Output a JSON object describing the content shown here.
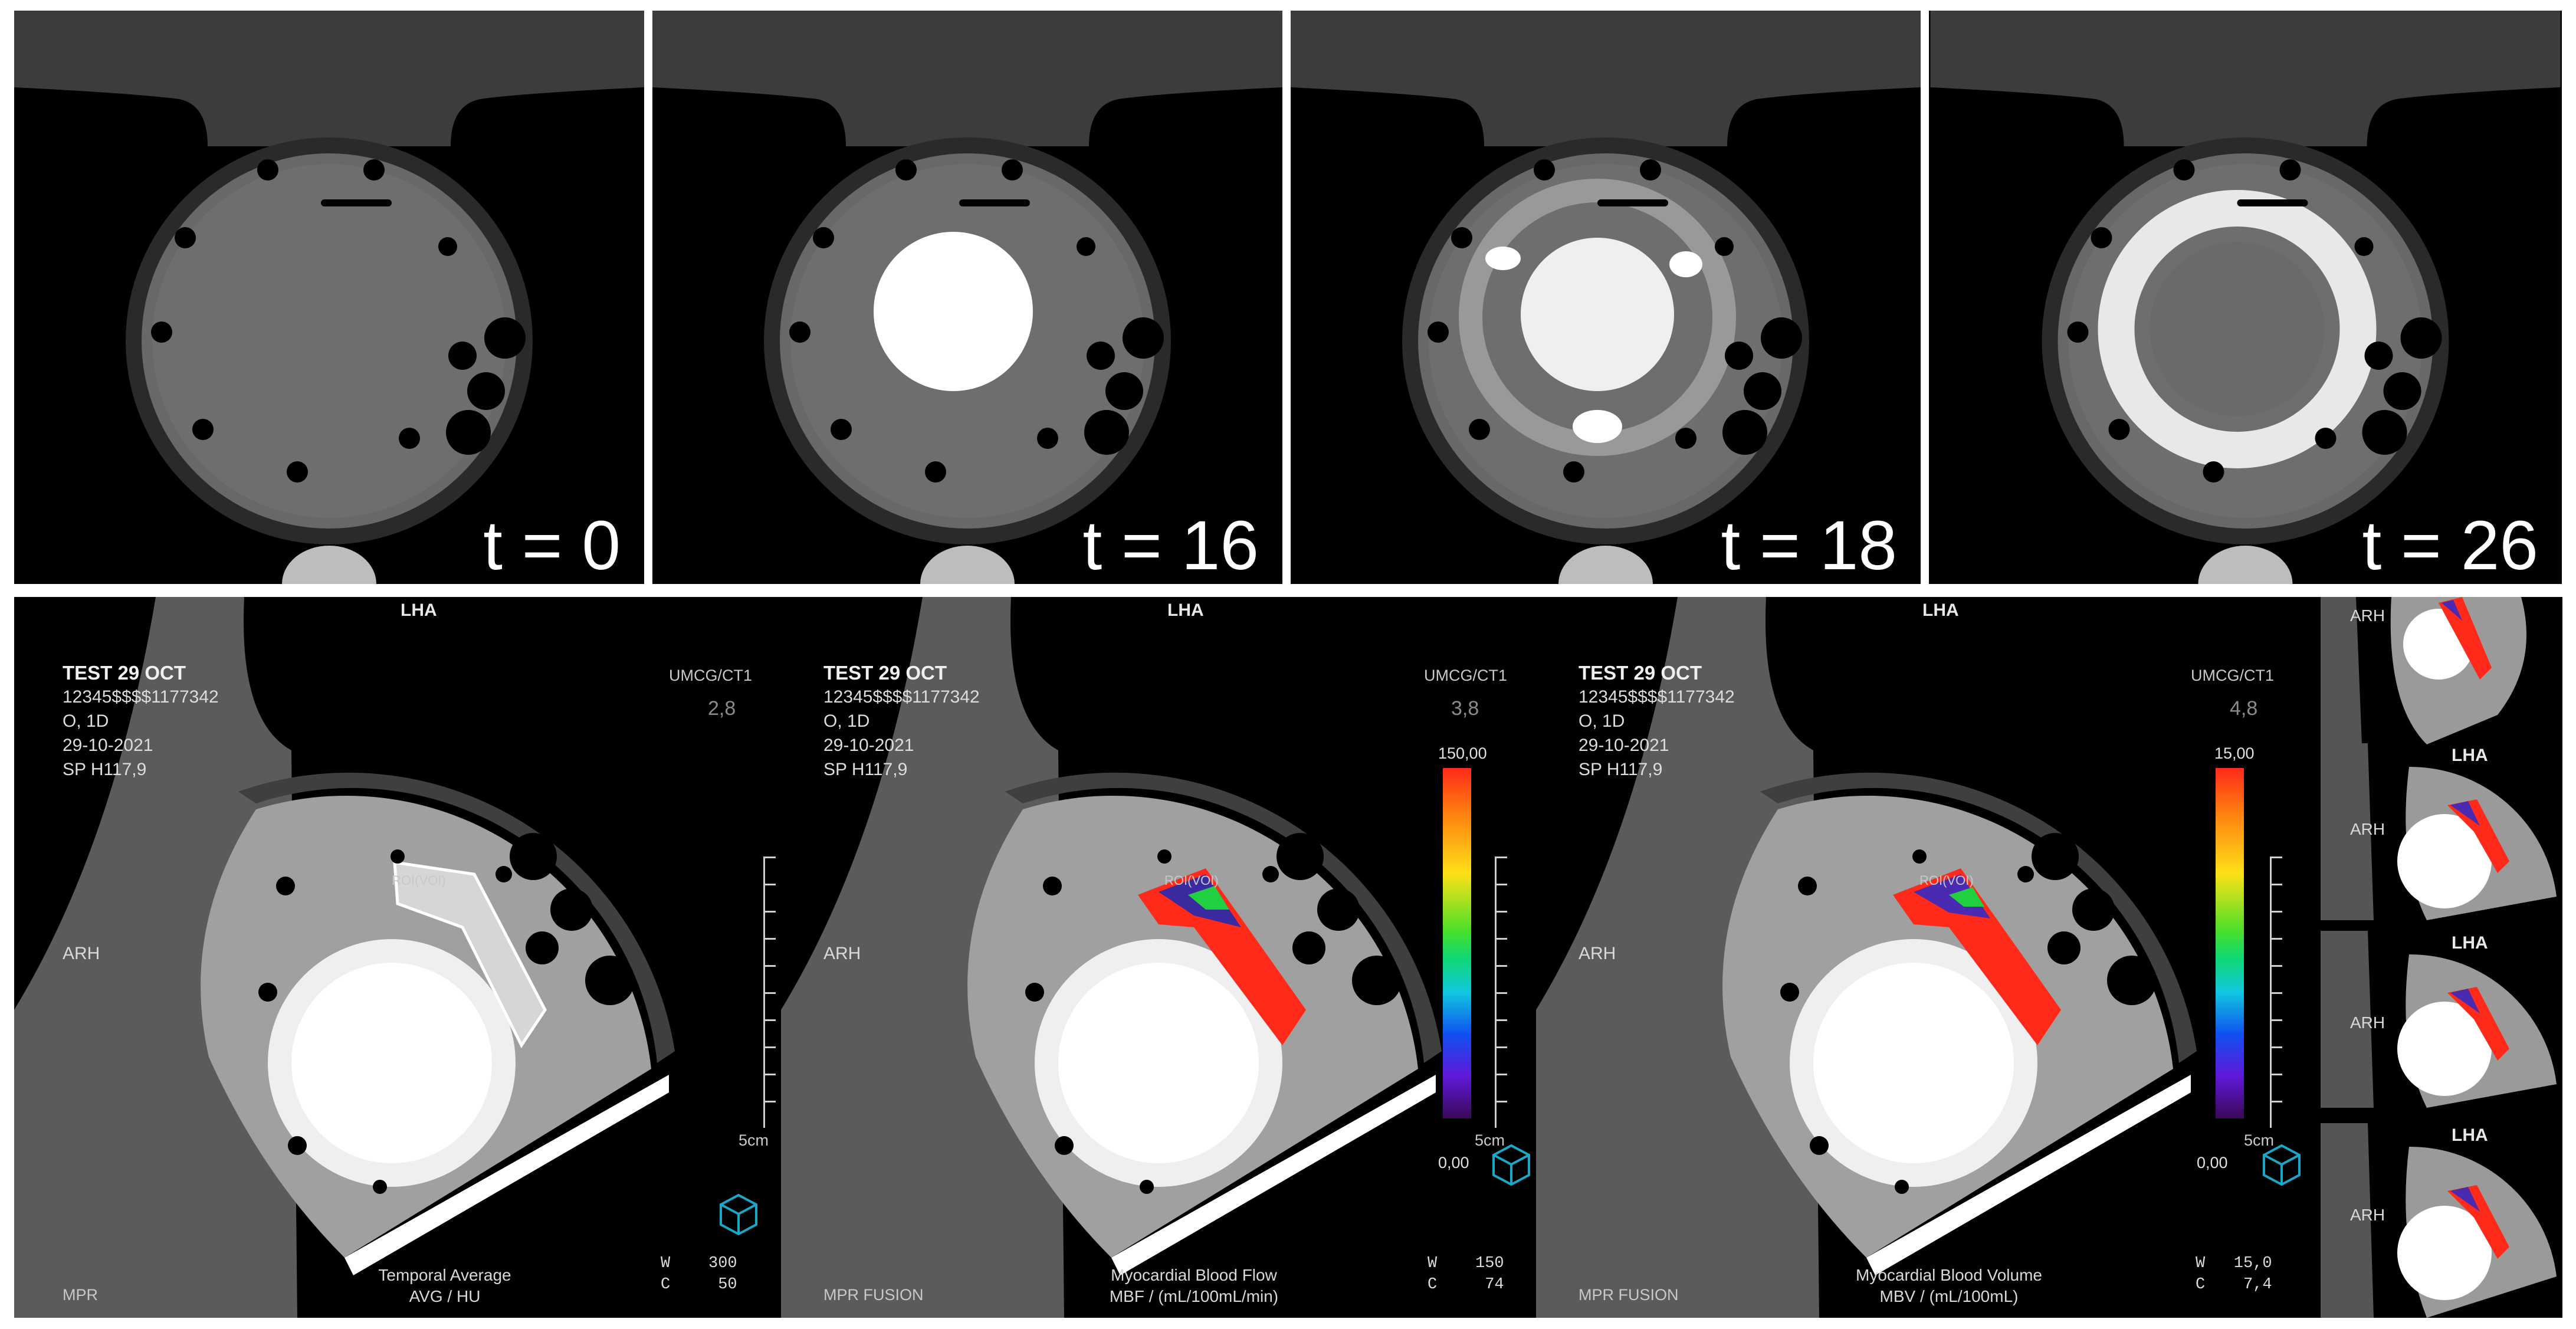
{
  "top_panels": [
    {
      "time_label": "t = 0"
    },
    {
      "time_label": "t = 16"
    },
    {
      "time_label": "t = 18"
    },
    {
      "time_label": "t = 26"
    }
  ],
  "viewports": [
    {
      "orientation_top": "LHA",
      "orientation_left": "ARH",
      "patient_name": "TEST 29 OCT",
      "patient_id": "12345$$$$1177342",
      "line3": "O, 1D",
      "date": "29-10-2021",
      "position": "SP H117,9",
      "institution": "UMCG/CT1",
      "zoom": "2,8",
      "scale_label": "5cm",
      "view_type": "MPR",
      "window": "W    300\nC     50",
      "caption_line1": "Temporal Average",
      "caption_line2": "AVG / HU",
      "roi_label": "ROI(VOI)"
    },
    {
      "orientation_top": "LHA",
      "orientation_left": "ARH",
      "patient_name": "TEST 29 OCT",
      "patient_id": "12345$$$$1177342",
      "line3": "O, 1D",
      "date": "29-10-2021",
      "position": "SP H117,9",
      "institution": "UMCG/CT1",
      "zoom": "3,8",
      "scale_label": "5cm",
      "view_type": "MPR FUSION",
      "window": "W    150\nC     74",
      "colorbar_max": "150,00",
      "colorbar_min": "0,00",
      "caption_line1": "Myocardial Blood Flow",
      "caption_line2": "MBF / (mL/100mL/min)",
      "roi_label": "ROI(VOI)"
    },
    {
      "orientation_top": "LHA",
      "orientation_left": "ARH",
      "patient_name": "TEST 29 OCT",
      "patient_id": "12345$$$$1177342",
      "line3": "O, 1D",
      "date": "29-10-2021",
      "position": "SP H117,9",
      "institution": "UMCG/CT1",
      "zoom": "4,8",
      "scale_label": "5cm",
      "view_type": "MPR FUSION",
      "window": "W   15,0\nC    7,4",
      "colorbar_max": "15,00",
      "colorbar_min": "0,00",
      "caption_line1": "Myocardial Blood Volume",
      "caption_line2": "MBV / (mL/100mL)",
      "roi_label": "ROI(VOI)"
    }
  ],
  "thumbnails": [
    {
      "top": "",
      "left": "ARH"
    },
    {
      "top": "LHA",
      "left": "ARH"
    },
    {
      "top": "LHA",
      "left": "ARH"
    },
    {
      "top": "LHA",
      "left": "ARH"
    }
  ],
  "colors": {
    "background": "#000000",
    "separator": "#ffffff",
    "overlay_text": "#e8e8e8",
    "cube": "#19a8c8",
    "perfusion_high": "#ff2a1a"
  }
}
